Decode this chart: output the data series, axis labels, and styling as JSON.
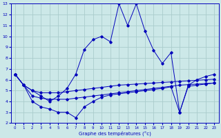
{
  "bg_color": "#cce8e8",
  "grid_color": "#aacccc",
  "line_color": "#0000bb",
  "xlabel": "Graphe des températures (°c)",
  "xlim": [
    -0.5,
    23.5
  ],
  "ylim": [
    2,
    13
  ],
  "yticks": [
    2,
    3,
    4,
    5,
    6,
    7,
    8,
    9,
    10,
    11,
    12,
    13
  ],
  "xticks": [
    0,
    1,
    2,
    3,
    4,
    5,
    6,
    7,
    8,
    9,
    10,
    11,
    12,
    13,
    14,
    15,
    16,
    17,
    18,
    19,
    20,
    21,
    22,
    23
  ],
  "series": [
    {
      "x": [
        0,
        1,
        2,
        3,
        4,
        5,
        6,
        7,
        8,
        9,
        10,
        11,
        12,
        13,
        14,
        15,
        16,
        17,
        18,
        19,
        20,
        21,
        22,
        23
      ],
      "y": [
        6.5,
        5.5,
        5.0,
        4.8,
        4.8,
        4.8,
        4.9,
        5.0,
        5.1,
        5.2,
        5.3,
        5.4,
        5.5,
        5.55,
        5.6,
        5.65,
        5.7,
        5.75,
        5.8,
        5.85,
        5.9,
        5.95,
        6.0,
        6.05
      ]
    },
    {
      "x": [
        0,
        1,
        2,
        3,
        4,
        5,
        6,
        7,
        8,
        9,
        10,
        11,
        12,
        13,
        14,
        15,
        16,
        17,
        18,
        19,
        20,
        21,
        22,
        23
      ],
      "y": [
        6.5,
        5.5,
        4.5,
        4.3,
        4.2,
        4.2,
        4.2,
        4.3,
        4.4,
        4.5,
        4.6,
        4.7,
        4.8,
        4.9,
        5.0,
        5.1,
        5.2,
        5.3,
        5.4,
        5.5,
        5.55,
        5.6,
        5.65,
        5.7
      ]
    },
    {
      "x": [
        0,
        1,
        2,
        3,
        4,
        5,
        6,
        7,
        8,
        9,
        10,
        11,
        12,
        13,
        14,
        15,
        16,
        17,
        18,
        19,
        20,
        21,
        22,
        23
      ],
      "y": [
        6.5,
        5.5,
        4.0,
        3.5,
        3.3,
        3.0,
        3.0,
        2.5,
        3.5,
        4.0,
        4.4,
        4.6,
        4.7,
        4.8,
        4.9,
        5.0,
        5.1,
        5.2,
        5.35,
        3.0,
        5.4,
        5.5,
        5.6,
        5.7
      ]
    },
    {
      "x": [
        0,
        1,
        2,
        3,
        4,
        5,
        6,
        7,
        8,
        9,
        10,
        11,
        12,
        13,
        14,
        15,
        16,
        17,
        18,
        19,
        20,
        21,
        22,
        23
      ],
      "y": [
        6.5,
        5.5,
        5.0,
        4.5,
        4.0,
        4.5,
        5.2,
        6.5,
        8.8,
        9.7,
        10.0,
        9.5,
        13.0,
        11.0,
        13.0,
        10.5,
        8.7,
        7.5,
        8.5,
        3.0,
        5.5,
        6.0,
        6.3,
        6.5
      ]
    }
  ]
}
